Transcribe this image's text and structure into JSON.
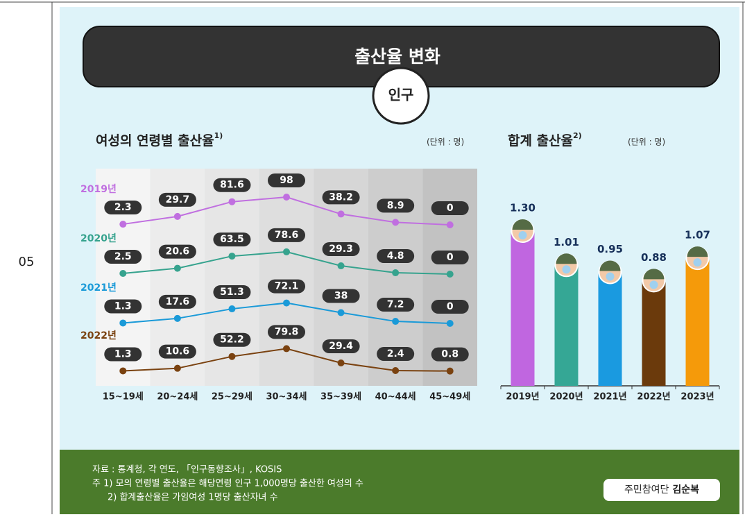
{
  "row_number": "05",
  "header": {
    "title": "출산율 변화",
    "badge": "인구"
  },
  "chart_data": [
    {
      "type": "line",
      "title": "여성의 연령별 출산율",
      "title_note": "1)",
      "unit": "(단위 : 명)",
      "categories": [
        "15~19세",
        "20~24세",
        "25~29세",
        "30~34세",
        "35~39세",
        "40~44세",
        "45~49세"
      ],
      "series": [
        {
          "name": "2019년",
          "color": "#c06fe0",
          "values": [
            2.3,
            29.7,
            81.6,
            98,
            38.2,
            8.9,
            0
          ]
        },
        {
          "name": "2020년",
          "color": "#36a38e",
          "values": [
            2.5,
            20.6,
            63.5,
            78.6,
            29.3,
            4.8,
            0
          ]
        },
        {
          "name": "2021년",
          "color": "#1a9ad8",
          "values": [
            1.3,
            17.6,
            51.3,
            72.1,
            38,
            7.2,
            0
          ]
        },
        {
          "name": "2022년",
          "color": "#7a4210",
          "values": [
            1.3,
            10.6,
            52.2,
            79.8,
            29.4,
            2.4,
            0.8
          ]
        }
      ]
    },
    {
      "type": "bar",
      "title": "합계 출산율",
      "title_note": "2)",
      "unit": "(단위 : 명)",
      "categories": [
        "2019년",
        "2020년",
        "2021년",
        "2022년",
        "2023년"
      ],
      "values": [
        1.3,
        1.01,
        0.95,
        0.88,
        1.07
      ],
      "value_labels": [
        "1.30",
        "1.01",
        "0.95",
        "0.88",
        "1.07"
      ],
      "colors": [
        "#c066e0",
        "#35a795",
        "#1a9ae0",
        "#6b3a0c",
        "#f59a0a"
      ]
    }
  ],
  "footer": {
    "source": "자료 : 통계청, 각 연도, 「인구동향조사」, KOSIS",
    "notes": [
      "주 1) 모의 연령별 출산율은 해당연령 인구 1,000명당 출산한 여성의 수",
      "2) 합계출산율은 가임여성 1명당 출산자녀 수"
    ],
    "credit": "주민참여단",
    "credit_name": "김순복"
  }
}
